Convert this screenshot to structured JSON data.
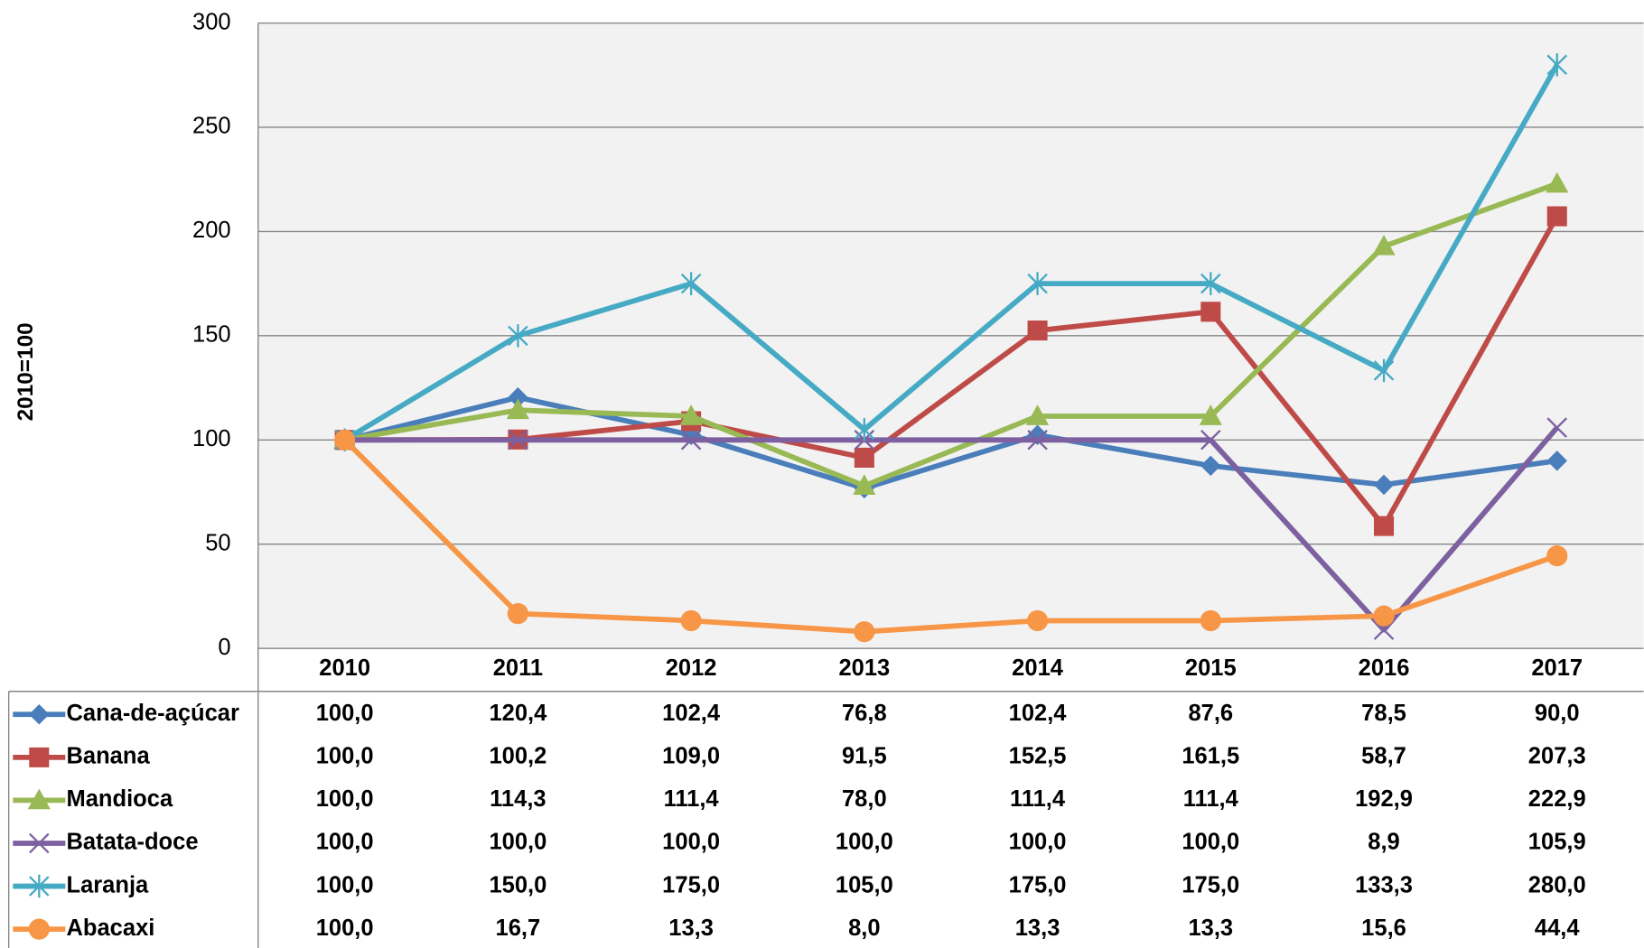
{
  "chart_data": {
    "type": "line",
    "y_label": "2010=100",
    "categories": [
      "2010",
      "2011",
      "2012",
      "2013",
      "2014",
      "2015",
      "2016",
      "2017"
    ],
    "ylim": [
      0,
      300
    ],
    "yticks": [
      0,
      50,
      100,
      150,
      200,
      250,
      300
    ],
    "grid": true,
    "series": [
      {
        "name": "Cana-de-açúcar",
        "color": "#4a7ebb",
        "marker": "diamond",
        "values": [
          100.0,
          120.4,
          102.4,
          76.8,
          102.4,
          87.6,
          78.5,
          90.0
        ],
        "value_labels": [
          "100,0",
          "120,4",
          "102,4",
          "76,8",
          "102,4",
          "87,6",
          "78,5",
          "90,0"
        ]
      },
      {
        "name": "Banana",
        "color": "#be4b48",
        "marker": "square",
        "values": [
          100.0,
          100.2,
          109.0,
          91.5,
          152.5,
          161.5,
          58.7,
          207.3
        ],
        "value_labels": [
          "100,0",
          "100,2",
          "109,0",
          "91,5",
          "152,5",
          "161,5",
          "58,7",
          "207,3"
        ]
      },
      {
        "name": "Mandioca",
        "color": "#98b954",
        "marker": "triangle",
        "values": [
          100.0,
          114.3,
          111.4,
          78.0,
          111.4,
          111.4,
          192.9,
          222.9
        ],
        "value_labels": [
          "100,0",
          "114,3",
          "111,4",
          "78,0",
          "111,4",
          "111,4",
          "192,9",
          "222,9"
        ]
      },
      {
        "name": "Batata-doce",
        "color": "#7d60a0",
        "marker": "x",
        "values": [
          100.0,
          100.0,
          100.0,
          100.0,
          100.0,
          100.0,
          8.9,
          105.9
        ],
        "value_labels": [
          "100,0",
          "100,0",
          "100,0",
          "100,0",
          "100,0",
          "100,0",
          "8,9",
          "105,9"
        ]
      },
      {
        "name": "Laranja",
        "color": "#46aac5",
        "marker": "star",
        "values": [
          100.0,
          150.0,
          175.0,
          105.0,
          175.0,
          175.0,
          133.3,
          280.0
        ],
        "value_labels": [
          "100,0",
          "150,0",
          "175,0",
          "105,0",
          "175,0",
          "175,0",
          "133,3",
          "280,0"
        ]
      },
      {
        "name": "Abacaxi",
        "color": "#f79646",
        "marker": "circle",
        "values": [
          100.0,
          16.7,
          13.3,
          8.0,
          13.3,
          13.3,
          15.6,
          44.4
        ],
        "value_labels": [
          "100,0",
          "16,7",
          "13,3",
          "8,0",
          "13,3",
          "13,3",
          "15,6",
          "44,4"
        ]
      }
    ]
  }
}
